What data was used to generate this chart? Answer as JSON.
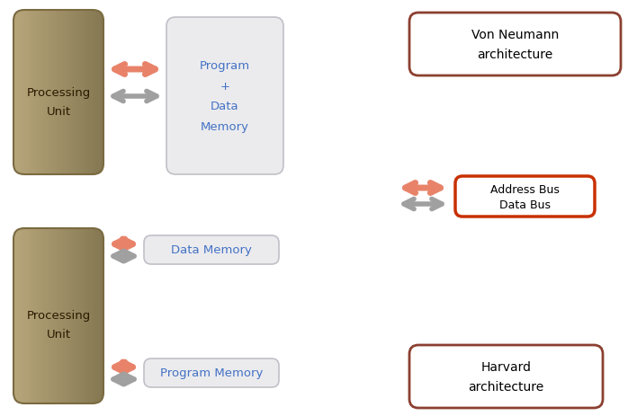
{
  "bg_color": "#ffffff",
  "tan_grad_light": [
    0.72,
    0.65,
    0.48
  ],
  "tan_grad_dark": [
    0.52,
    0.47,
    0.32
  ],
  "tan_box_edge": "#7a6a40",
  "mem_box_color": "#ebebee",
  "mem_box_edge": "#c0c0cc",
  "arrow_salmon": "#e8836a",
  "arrow_gray": "#a0a0a0",
  "label_color": "#4472c4",
  "text_color": "#000000",
  "neumann_label": "Von Neumann\narchitecture",
  "neumann_box_edge": "#8b4030",
  "harvard_label": "Harvard\narchitecture",
  "harvard_box_edge": "#8b4030",
  "legend_box_edge": "#c83000",
  "legend_address": "Address Bus",
  "legend_data": "Data Bus",
  "neumann_proc_label": "Processing\nUnit",
  "neumann_mem_label": "Program\n+\nData\nMemory",
  "harvard_proc_label": "Processing\nUnit",
  "harvard_data_label": "Data Memory",
  "harvard_prog_label": "Program Memory",
  "proc_text_color": "#2a1a00"
}
